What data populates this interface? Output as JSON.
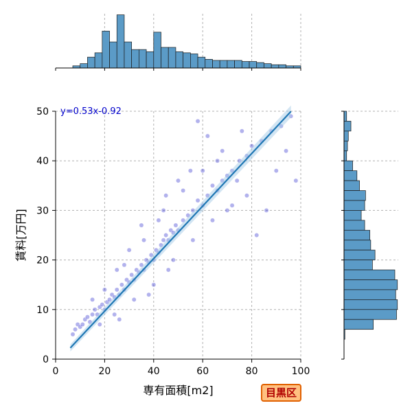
{
  "chart_data": {
    "type": "scatter",
    "xlabel": "専有面積[m2]",
    "ylabel": "賃料[万円]",
    "xlim": [
      0,
      100
    ],
    "ylim": [
      0,
      50
    ],
    "x_ticks": [
      0,
      20,
      40,
      60,
      80,
      100
    ],
    "y_ticks": [
      0,
      10,
      20,
      30,
      40,
      50
    ],
    "grid": true,
    "annotation": "y=0.53x-0.92",
    "badge": "目黒区",
    "regression": {
      "slope": 0.53,
      "intercept": -0.92,
      "x_range": [
        6,
        96
      ]
    },
    "point_color": "#2222cc",
    "line_color": "#1f77b4",
    "hist_color": "#5b9bc7",
    "scatter_points": [
      [
        7,
        5
      ],
      [
        8,
        6
      ],
      [
        9,
        7
      ],
      [
        10,
        6.5
      ],
      [
        11,
        7
      ],
      [
        12,
        8
      ],
      [
        13,
        8.5
      ],
      [
        14,
        7.5
      ],
      [
        15,
        9
      ],
      [
        16,
        10
      ],
      [
        17,
        9
      ],
      [
        18,
        10.5
      ],
      [
        19,
        11
      ],
      [
        20,
        10
      ],
      [
        21,
        11.5
      ],
      [
        22,
        12
      ],
      [
        23,
        13
      ],
      [
        24,
        12.5
      ],
      [
        25,
        14
      ],
      [
        26,
        13
      ],
      [
        27,
        15
      ],
      [
        28,
        14
      ],
      [
        29,
        16
      ],
      [
        30,
        15.5
      ],
      [
        31,
        17
      ],
      [
        32,
        16
      ],
      [
        33,
        18
      ],
      [
        34,
        17.5
      ],
      [
        35,
        19
      ],
      [
        36,
        18
      ],
      [
        37,
        20
      ],
      [
        38,
        19.5
      ],
      [
        39,
        21
      ],
      [
        40,
        20
      ],
      [
        41,
        22
      ],
      [
        42,
        21.5
      ],
      [
        43,
        23
      ],
      [
        44,
        24
      ],
      [
        45,
        25
      ],
      [
        46,
        24
      ],
      [
        47,
        26
      ],
      [
        48,
        25.5
      ],
      [
        49,
        27
      ],
      [
        50,
        26
      ],
      [
        52,
        28
      ],
      [
        54,
        29
      ],
      [
        56,
        30
      ],
      [
        58,
        32
      ],
      [
        60,
        31
      ],
      [
        62,
        33
      ],
      [
        64,
        35
      ],
      [
        66,
        34
      ],
      [
        68,
        36
      ],
      [
        70,
        37
      ],
      [
        72,
        38
      ],
      [
        75,
        40
      ],
      [
        78,
        41
      ],
      [
        80,
        43
      ],
      [
        84,
        44
      ],
      [
        88,
        46
      ],
      [
        92,
        47
      ],
      [
        96,
        49
      ],
      [
        20,
        14
      ],
      [
        24,
        9
      ],
      [
        28,
        19
      ],
      [
        32,
        12
      ],
      [
        36,
        24
      ],
      [
        40,
        15
      ],
      [
        44,
        30
      ],
      [
        48,
        20
      ],
      [
        52,
        34
      ],
      [
        56,
        24
      ],
      [
        60,
        38
      ],
      [
        64,
        28
      ],
      [
        68,
        42
      ],
      [
        72,
        31
      ],
      [
        76,
        46
      ],
      [
        58,
        48
      ],
      [
        62,
        45
      ],
      [
        66,
        40
      ],
      [
        45,
        33
      ],
      [
        50,
        36
      ],
      [
        35,
        27
      ],
      [
        30,
        22
      ],
      [
        25,
        18
      ],
      [
        42,
        28
      ],
      [
        55,
        38
      ],
      [
        70,
        30
      ],
      [
        74,
        36
      ],
      [
        86,
        30
      ],
      [
        90,
        38
      ],
      [
        94,
        42
      ],
      [
        98,
        36
      ],
      [
        82,
        25
      ],
      [
        78,
        33
      ],
      [
        46,
        18
      ],
      [
        38,
        13
      ],
      [
        26,
        8
      ],
      [
        18,
        7
      ],
      [
        15,
        12
      ]
    ],
    "top_histogram": {
      "x_ranges": [
        [
          7,
          10
        ],
        [
          10,
          13
        ],
        [
          13,
          16
        ],
        [
          16,
          19
        ],
        [
          19,
          22
        ],
        [
          22,
          25
        ],
        [
          25,
          28
        ],
        [
          28,
          31
        ],
        [
          31,
          34
        ],
        [
          34,
          37
        ],
        [
          37,
          40
        ],
        [
          40,
          43
        ],
        [
          43,
          46
        ],
        [
          46,
          49
        ],
        [
          49,
          52
        ],
        [
          52,
          55
        ],
        [
          55,
          58
        ],
        [
          58,
          61
        ],
        [
          61,
          64
        ],
        [
          64,
          67
        ],
        [
          67,
          70
        ],
        [
          70,
          73
        ],
        [
          73,
          76
        ],
        [
          76,
          79
        ],
        [
          79,
          82
        ],
        [
          82,
          85
        ],
        [
          85,
          88
        ],
        [
          88,
          91
        ],
        [
          91,
          94
        ],
        [
          94,
          97
        ],
        [
          97,
          100
        ]
      ],
      "counts": [
        2,
        4,
        10,
        14,
        34,
        24,
        49,
        24,
        17,
        17,
        15,
        33,
        19,
        19,
        15,
        14,
        13,
        10,
        8,
        7,
        7,
        7,
        7,
        6,
        6,
        5,
        4,
        3,
        3,
        2,
        2
      ]
    },
    "right_histogram": {
      "y_ranges": [
        [
          48,
          50
        ],
        [
          46,
          48
        ],
        [
          44,
          46
        ],
        [
          42,
          44
        ],
        [
          40,
          42
        ],
        [
          38,
          40
        ],
        [
          36,
          38
        ],
        [
          34,
          36
        ],
        [
          32,
          34
        ],
        [
          30,
          32
        ],
        [
          28,
          30
        ],
        [
          26,
          28
        ],
        [
          24,
          26
        ],
        [
          22,
          24
        ],
        [
          20,
          22
        ],
        [
          18,
          20
        ],
        [
          16,
          18
        ],
        [
          14,
          16
        ],
        [
          12,
          14
        ],
        [
          10,
          12
        ],
        [
          8,
          10
        ],
        [
          6,
          8
        ],
        [
          4,
          6
        ],
        [
          2,
          4
        ],
        [
          0,
          2
        ]
      ],
      "counts": [
        3,
        8,
        5,
        4,
        3,
        10,
        15,
        18,
        25,
        24,
        20,
        24,
        30,
        31,
        36,
        33,
        59,
        62,
        60,
        62,
        61,
        34,
        1,
        0,
        0
      ]
    }
  }
}
